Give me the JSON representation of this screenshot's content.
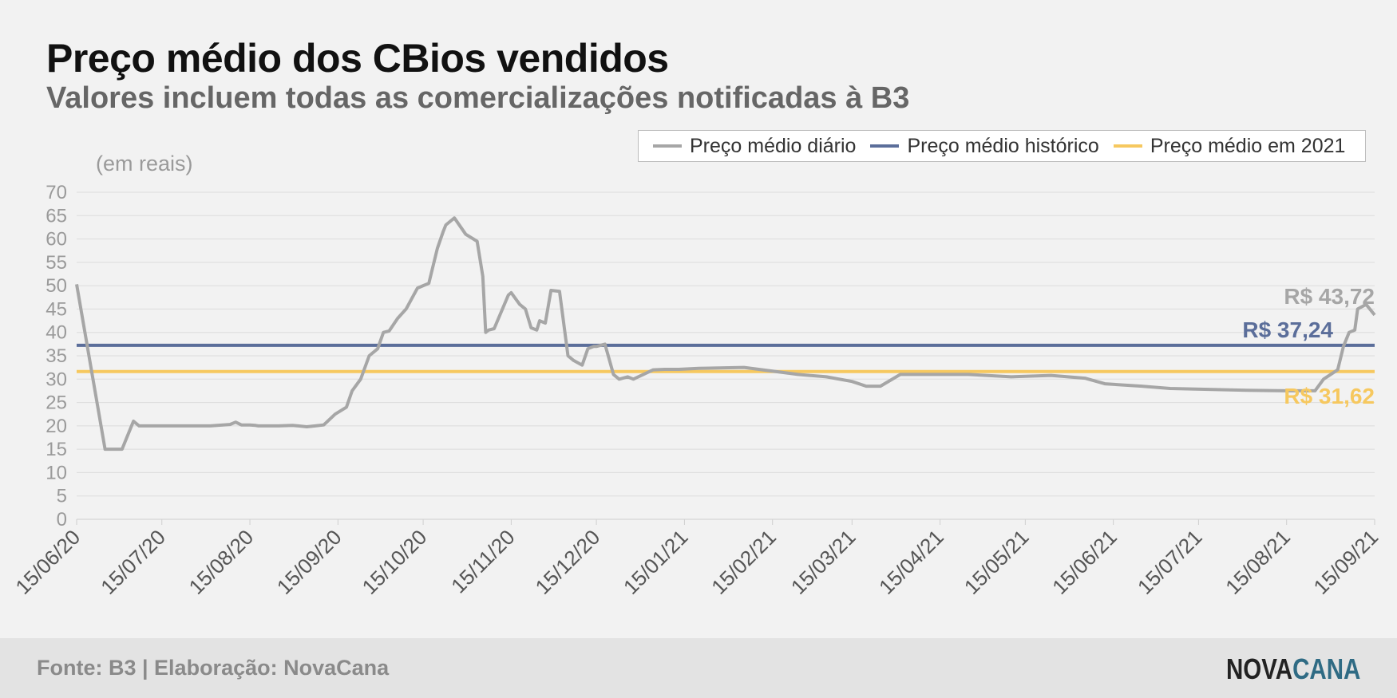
{
  "title": "Preço médio dos CBios vendidos",
  "subtitle": "Valores incluem todas as comercializações notificadas à B3",
  "unit_label": "(em reais)",
  "footer": {
    "source": "Fonte: B3 | Elaboração: NovaCana",
    "logo_part1": "NOVA",
    "logo_part2": "CANA"
  },
  "colors": {
    "daily": "#a6a6a6",
    "historic": "#5b6e9a",
    "year2021": "#f6c85f",
    "background": "#f2f2f2"
  },
  "chart_data": {
    "type": "line",
    "ylim": [
      0,
      70
    ],
    "yticks": [
      0,
      5,
      10,
      15,
      20,
      25,
      30,
      35,
      40,
      45,
      50,
      55,
      60,
      65,
      70
    ],
    "xlim": [
      "2020-06-15",
      "2021-09-15"
    ],
    "xtick_labels": [
      "15/06/20",
      "15/07/20",
      "15/08/20",
      "15/09/20",
      "15/10/20",
      "15/11/20",
      "15/12/20",
      "15/01/21",
      "15/02/21",
      "15/03/21",
      "15/04/21",
      "15/05/21",
      "15/06/21",
      "15/07/21",
      "15/08/21",
      "15/09/21"
    ],
    "xtick_dates": [
      "2020-06-15",
      "2020-07-15",
      "2020-08-15",
      "2020-09-15",
      "2020-10-15",
      "2020-11-15",
      "2020-12-15",
      "2021-01-15",
      "2021-02-15",
      "2021-03-15",
      "2021-04-15",
      "2021-05-15",
      "2021-06-15",
      "2021-07-15",
      "2021-08-15",
      "2021-09-15"
    ],
    "grid": true,
    "legend_position": "top-right",
    "series": [
      {
        "name": "Preço médio diário",
        "x": [
          "2020-06-15",
          "2020-06-25",
          "2020-06-26",
          "2020-07-01",
          "2020-07-03",
          "2020-07-05",
          "2020-07-07",
          "2020-07-09",
          "2020-07-15",
          "2020-07-25",
          "2020-08-01",
          "2020-08-08",
          "2020-08-10",
          "2020-08-12",
          "2020-08-15",
          "2020-08-17",
          "2020-08-18",
          "2020-08-20",
          "2020-08-25",
          "2020-08-30",
          "2020-09-01",
          "2020-09-04",
          "2020-09-07",
          "2020-09-10",
          "2020-09-14",
          "2020-09-18",
          "2020-09-20",
          "2020-09-23",
          "2020-09-26",
          "2020-09-29",
          "2020-10-01",
          "2020-10-03",
          "2020-10-06",
          "2020-10-09",
          "2020-10-13",
          "2020-10-15",
          "2020-10-17",
          "2020-10-20",
          "2020-10-22",
          "2020-10-23",
          "2020-10-26",
          "2020-10-30",
          "2020-11-03",
          "2020-11-05",
          "2020-11-06",
          "2020-11-07",
          "2020-11-09",
          "2020-11-14",
          "2020-11-15",
          "2020-11-18",
          "2020-11-20",
          "2020-11-22",
          "2020-11-24",
          "2020-11-25",
          "2020-11-27",
          "2020-11-29",
          "2020-12-02",
          "2020-12-05",
          "2020-12-07",
          "2020-12-10",
          "2020-12-12",
          "2020-12-14",
          "2020-12-15",
          "2020-12-18",
          "2020-12-21",
          "2020-12-23",
          "2020-12-26",
          "2020-12-28",
          "2021-01-04",
          "2021-01-08",
          "2021-01-13",
          "2021-01-20",
          "2021-02-05",
          "2021-02-24",
          "2021-03-06",
          "2021-03-15",
          "2021-03-20",
          "2021-03-25",
          "2021-04-01",
          "2021-04-10",
          "2021-04-25",
          "2021-05-10",
          "2021-05-24",
          "2021-06-05",
          "2021-06-12",
          "2021-06-25",
          "2021-07-05",
          "2021-07-20",
          "2021-08-01",
          "2021-08-15",
          "2021-08-25",
          "2021-08-28",
          "2021-09-02",
          "2021-09-04",
          "2021-09-06",
          "2021-09-08",
          "2021-09-09",
          "2021-09-12",
          "2021-09-15"
        ],
        "y": [
          50.3,
          15.0,
          15.0,
          15.0,
          18.0,
          21.0,
          20.0,
          20.0,
          20.0,
          20.0,
          20.0,
          20.3,
          20.8,
          20.2,
          20.2,
          20.1,
          20.0,
          20.0,
          20.0,
          20.1,
          20.0,
          19.8,
          20.0,
          20.2,
          22.5,
          24.0,
          27.5,
          30.0,
          35.0,
          36.5,
          40.0,
          40.3,
          43.0,
          45.0,
          49.5,
          50.0,
          50.5,
          58.0,
          61.5,
          63.0,
          64.5,
          61.0,
          59.5,
          52.0,
          40.0,
          40.5,
          40.8,
          48.0,
          48.5,
          46.0,
          45.0,
          41.0,
          40.5,
          42.5,
          42.0,
          49.0,
          48.8,
          35.0,
          34.0,
          33.0,
          36.5,
          37.0,
          37.0,
          37.5,
          31.0,
          30.0,
          30.5,
          30.0,
          32.0,
          32.1,
          32.1,
          32.3,
          32.5,
          31.0,
          30.5,
          29.5,
          28.5,
          28.5,
          31.0,
          31.0,
          31.0,
          30.5,
          30.8,
          30.2,
          29.0,
          28.5,
          28.0,
          27.8,
          27.6,
          27.5,
          27.5,
          30.0,
          32.0,
          37.0,
          40.0,
          40.5,
          45.0,
          46.0,
          43.72
        ]
      },
      {
        "name": "Preço médio histórico",
        "value": 37.24,
        "label": "R$ 37,24"
      },
      {
        "name": "Preço médio em 2021",
        "value": 31.62,
        "label": "R$ 31,62"
      }
    ],
    "annotations": [
      {
        "text": "R$ 43,72",
        "series": "Preço médio diário",
        "value": 43.72
      },
      {
        "text": "R$ 37,24",
        "series": "Preço médio histórico",
        "value": 37.24
      },
      {
        "text": "R$ 31,62",
        "series": "Preço médio em 2021",
        "value": 31.62
      }
    ]
  }
}
